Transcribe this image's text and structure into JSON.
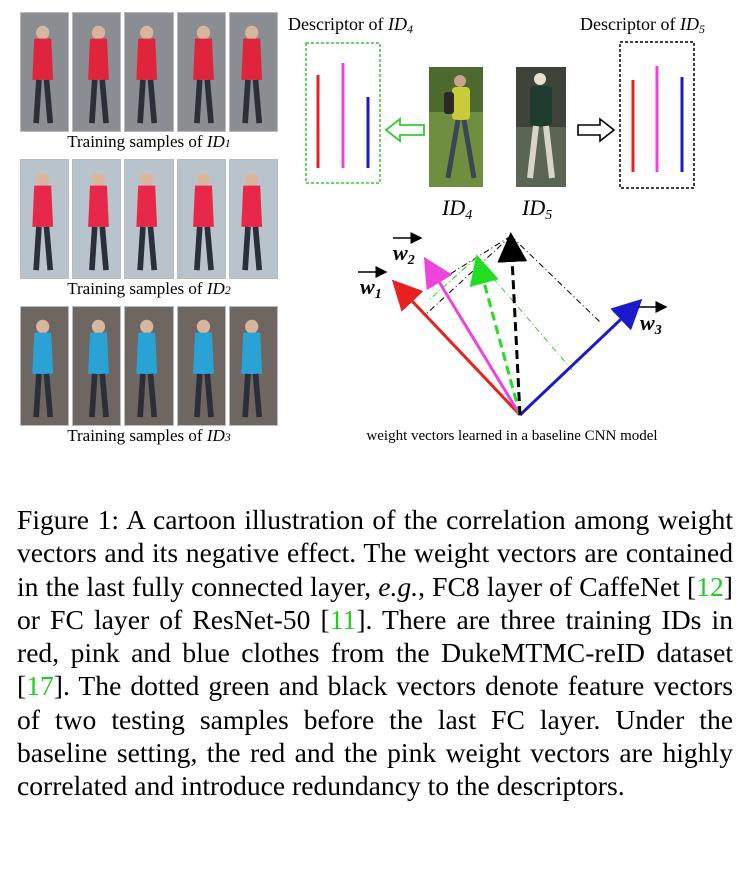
{
  "left_panel": {
    "rows": [
      {
        "caption_prefix": "Training samples of",
        "id_label": "ID",
        "id_sub": "1",
        "coat_color": "#e0243c",
        "bg_color": "#8a8e92"
      },
      {
        "caption_prefix": "Training samples of",
        "id_label": "ID",
        "id_sub": "2",
        "coat_color": "#e8284a",
        "bg_color": "#b9c3cb"
      },
      {
        "caption_prefix": "Training samples of",
        "id_label": "ID",
        "id_sub": "3",
        "coat_color": "#2aa2d6",
        "bg_color": "#6e6660"
      }
    ]
  },
  "diagram": {
    "descriptor_id4": {
      "prefix": "Descriptor of ",
      "id": "ID",
      "sub": "4"
    },
    "descriptor_id5": {
      "prefix": "Descriptor of ",
      "id": "ID",
      "sub": "5"
    },
    "person_id4": {
      "id": "ID",
      "sub": "4"
    },
    "person_id5": {
      "id": "ID",
      "sub": "5"
    },
    "w1": {
      "letter": "w",
      "sub": "1"
    },
    "w2": {
      "letter": "w",
      "sub": "2"
    },
    "w3": {
      "letter": "w",
      "sub": "3"
    },
    "vectors_caption": "weight vectors learned in a baseline CNN model",
    "colors": {
      "red": "#e82020",
      "pink": "#ee44dd",
      "blue": "#1a1acc",
      "green": "#22dd22",
      "black": "#000000"
    }
  },
  "caption": {
    "seg1": "Figure 1:  A cartoon illustration of the correlation among weight vectors and its negative effect.  The weight vectors are contained in the last fully connected layer, ",
    "eg": "e.g.",
    "seg2": ", FC8 layer of CaffeNet [",
    "cite1": "12",
    "seg3": "] or FC layer of ResNet-50 [",
    "cite2": "11",
    "seg4": "]. There are three training IDs in red, pink and blue clothes from the DukeMTMC-reID dataset [",
    "cite3": "17",
    "seg5": "]. The dotted green and black vectors denote feature vectors of two testing samples before the last FC layer.  Under the baseline setting, the red and the pink weight vectors are highly correlated and introduce redundancy to the descriptors."
  }
}
